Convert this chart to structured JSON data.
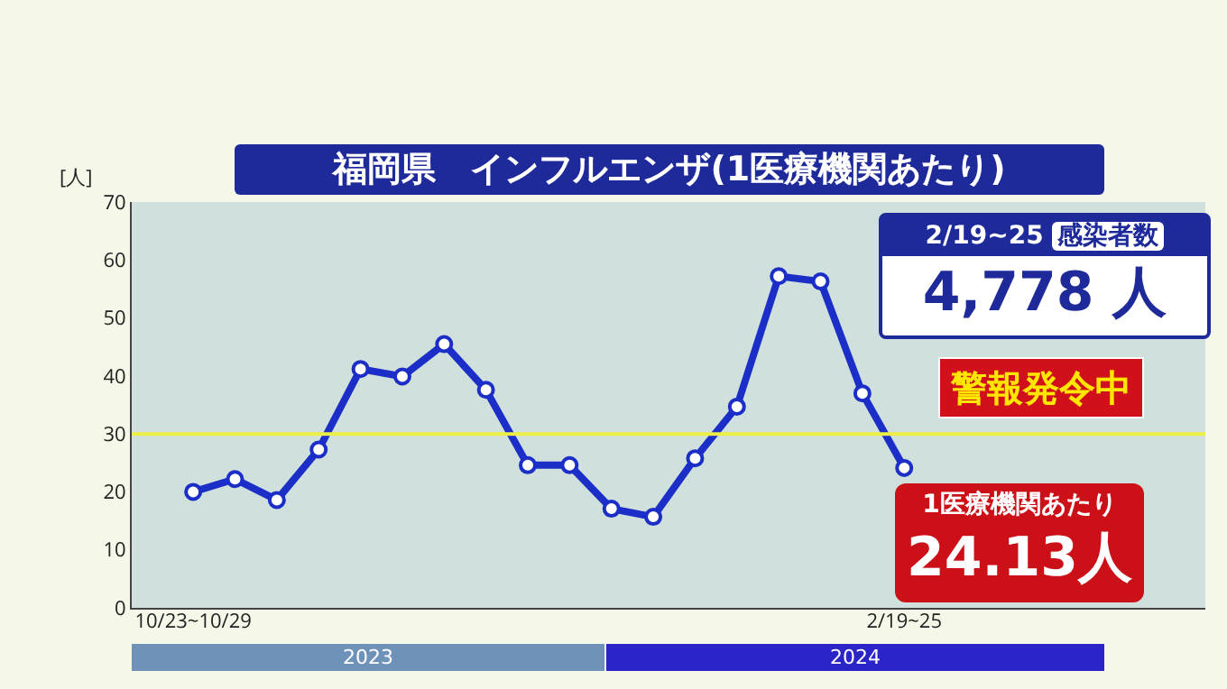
{
  "chart_data": {
    "type": "line",
    "title": "福岡県　インフルエンザ(1医療機関あたり)",
    "ylabel": "[人]",
    "categories": [
      "10/23~10/29",
      null,
      null,
      null,
      null,
      null,
      null,
      null,
      null,
      null,
      null,
      null,
      null,
      null,
      null,
      null,
      null,
      "2/19~25"
    ],
    "series": [
      {
        "color": "#1c2ec8",
        "values": [
          20,
          22.2,
          18.6,
          27.3,
          41.2,
          39.9,
          45.5,
          37.6,
          24.6,
          24.6,
          17.1,
          15.7,
          25.8,
          34.7,
          57.2,
          56.3,
          37.0,
          24.13
        ],
        "value_labels": [
          null,
          null,
          null,
          null,
          null,
          null,
          null,
          null,
          null,
          null,
          null,
          null,
          null,
          null,
          null,
          null,
          null,
          "24.13人"
        ]
      }
    ],
    "ylim": [
      0,
      70
    ],
    "yticks": [
      0,
      10,
      20,
      30,
      40,
      50,
      60,
      70
    ],
    "grid": false,
    "marker": "circle",
    "line_style": "solid",
    "ref_lines": [
      {
        "axis": "y",
        "value": 30,
        "color": "#eeee44"
      }
    ],
    "annotations": [
      "2023",
      "2024",
      "2/19~25",
      "感染者数",
      "4,778 人",
      "警報発令中",
      "1医療機関あたり"
    ]
  }
}
